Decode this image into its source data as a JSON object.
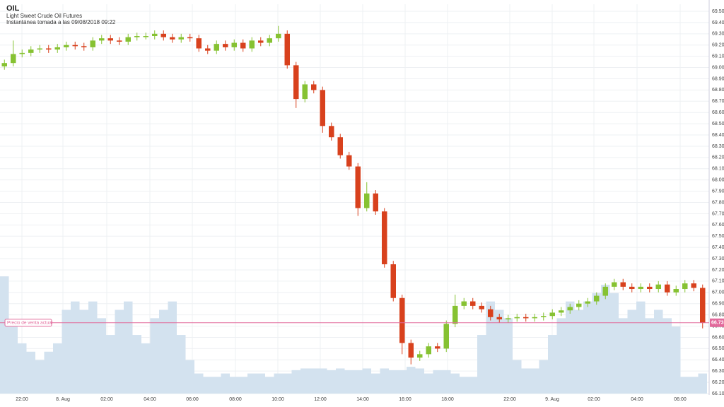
{
  "chart_data": {
    "type": "candlestick",
    "title": "OIL",
    "subtitle": "Light Sweet Crude Oil Futures",
    "snapshot": "Instantánea tomada a las 09/08/2018 09:22",
    "up_color": "#86c232",
    "down_color": "#d8411d",
    "x": [
      0.5,
      1.5,
      2.5,
      3.5,
      4.5,
      5.5,
      6.5,
      7.5,
      8.5,
      9.5,
      10.5,
      11.5,
      12.5,
      13.5,
      14.5,
      15.5,
      16.5,
      17.5,
      18.5,
      19.5,
      20.5,
      21.5,
      22.5,
      23.5,
      24.5,
      25.5,
      26.5,
      27.5,
      28.5,
      29.5,
      30.5,
      31.5,
      32.5,
      33.5,
      34.5,
      35.5,
      36.5,
      37.5,
      38.5,
      39.5,
      40.5,
      41.5,
      42.5,
      43.5,
      44.5,
      45.5,
      46.5,
      47.5,
      48.5,
      49.5,
      50.5,
      51.5,
      52.5,
      53.5,
      54.5,
      55.5,
      56.5,
      57.5,
      58.5,
      59.5,
      60.5,
      61.5,
      62.5,
      63.5,
      64.5,
      65.5,
      66.5,
      67.5,
      68.5,
      69.5,
      70.5,
      71.5,
      72.5,
      73.5,
      74.5,
      75.5,
      76.5,
      77.5,
      78.5,
      79.5
    ],
    "open": [
      69.01,
      69.04,
      69.12,
      69.13,
      69.16,
      69.17,
      69.16,
      69.18,
      69.2,
      69.19,
      69.18,
      69.24,
      69.26,
      69.24,
      69.23,
      69.27,
      69.28,
      69.28,
      69.3,
      69.27,
      69.25,
      69.27,
      69.26,
      69.17,
      69.15,
      69.21,
      69.18,
      69.22,
      69.17,
      69.24,
      69.22,
      69.26,
      69.3,
      69.02,
      68.72,
      68.85,
      68.8,
      68.48,
      68.38,
      68.22,
      68.12,
      67.75,
      67.88,
      67.72,
      67.25,
      66.95,
      66.55,
      66.42,
      66.45,
      66.52,
      66.5,
      66.72,
      66.88,
      66.92,
      66.88,
      66.85,
      66.78,
      66.76,
      66.77,
      66.78,
      66.77,
      66.78,
      66.79,
      66.82,
      66.84,
      66.87,
      66.9,
      66.92,
      66.97,
      67.05,
      67.09,
      67.05,
      67.03,
      67.05,
      67.03,
      67.07,
      67.0,
      67.03,
      67.08,
      67.04
    ],
    "high": [
      69.07,
      69.24,
      69.16,
      69.19,
      69.2,
      69.2,
      69.21,
      69.23,
      69.23,
      69.22,
      69.27,
      69.29,
      69.29,
      69.27,
      69.3,
      69.31,
      69.31,
      69.33,
      69.33,
      69.3,
      69.3,
      69.3,
      69.29,
      69.2,
      69.24,
      69.24,
      69.25,
      69.25,
      69.27,
      69.27,
      69.29,
      69.37,
      69.33,
      69.05,
      68.88,
      68.88,
      68.83,
      68.51,
      68.41,
      68.25,
      68.15,
      67.98,
      67.91,
      67.75,
      67.28,
      66.98,
      66.58,
      66.48,
      66.55,
      66.55,
      66.75,
      66.98,
      66.95,
      66.95,
      66.91,
      66.88,
      66.81,
      66.8,
      66.81,
      66.81,
      66.81,
      66.82,
      66.85,
      66.87,
      66.9,
      66.93,
      66.95,
      67.0,
      67.08,
      67.12,
      67.12,
      67.08,
      67.08,
      67.08,
      67.1,
      67.1,
      67.06,
      67.11,
      67.11,
      67.07
    ],
    "low": [
      68.98,
      69.01,
      69.09,
      69.1,
      69.13,
      69.13,
      69.13,
      69.15,
      69.16,
      69.15,
      69.15,
      69.21,
      69.21,
      69.2,
      69.2,
      69.24,
      69.25,
      69.25,
      69.24,
      69.22,
      69.22,
      69.23,
      69.14,
      69.12,
      69.12,
      69.15,
      69.15,
      69.14,
      69.14,
      69.19,
      69.19,
      69.23,
      68.99,
      68.64,
      68.69,
      68.77,
      68.42,
      68.35,
      68.19,
      68.09,
      67.68,
      67.72,
      67.69,
      67.22,
      66.92,
      66.45,
      66.36,
      66.39,
      66.42,
      66.47,
      66.47,
      66.69,
      66.85,
      66.85,
      66.82,
      66.75,
      66.73,
      66.73,
      66.74,
      66.74,
      66.74,
      66.75,
      66.76,
      66.79,
      66.81,
      66.84,
      66.87,
      66.89,
      66.94,
      67.02,
      67.02,
      67.0,
      67.0,
      67.0,
      67.0,
      66.97,
      66.97,
      67.0,
      67.01,
      66.68
    ],
    "close": [
      69.04,
      69.12,
      69.13,
      69.16,
      69.17,
      69.16,
      69.18,
      69.2,
      69.19,
      69.18,
      69.24,
      69.26,
      69.24,
      69.23,
      69.27,
      69.28,
      69.28,
      69.3,
      69.27,
      69.25,
      69.27,
      69.26,
      69.17,
      69.15,
      69.21,
      69.18,
      69.22,
      69.17,
      69.24,
      69.22,
      69.26,
      69.3,
      69.02,
      68.72,
      68.85,
      68.8,
      68.48,
      68.38,
      68.22,
      68.12,
      67.75,
      67.88,
      67.72,
      67.25,
      66.95,
      66.55,
      66.42,
      66.45,
      66.52,
      66.5,
      66.72,
      66.88,
      66.92,
      66.88,
      66.85,
      66.78,
      66.76,
      66.77,
      66.78,
      66.77,
      66.78,
      66.79,
      66.82,
      66.84,
      66.87,
      66.9,
      66.92,
      66.97,
      67.05,
      67.09,
      67.05,
      67.03,
      67.05,
      67.03,
      67.07,
      67.0,
      67.03,
      67.08,
      67.04,
      66.73
    ],
    "volume": {
      "color": "#d3e2ef",
      "axis": "y2",
      "values": [
        70,
        40,
        30,
        25,
        20,
        25,
        30,
        50,
        55,
        50,
        55,
        45,
        35,
        50,
        55,
        35,
        30,
        45,
        50,
        55,
        35,
        20,
        12,
        10,
        10,
        12,
        10,
        10,
        12,
        12,
        10,
        12,
        12,
        14,
        15,
        15,
        15,
        14,
        15,
        14,
        14,
        15,
        12,
        15,
        14,
        14,
        16,
        15,
        12,
        14,
        14,
        12,
        10,
        10,
        35,
        55,
        50,
        45,
        20,
        15,
        15,
        20,
        35,
        45,
        55,
        50,
        55,
        60,
        65,
        60,
        45,
        50,
        55,
        45,
        50,
        45,
        40,
        10,
        10,
        12
      ]
    },
    "y2lim": [
      0,
      100
    ],
    "xlim": [
      0,
      80.24
    ],
    "xticks": [
      {
        "value": 2.48,
        "label": "22:00"
      },
      {
        "value": 7.12,
        "label": "8. Aug"
      },
      {
        "value": 12.08,
        "label": "02:00"
      },
      {
        "value": 16.96,
        "label": "04:00"
      },
      {
        "value": 21.76,
        "label": "06:00"
      },
      {
        "value": 26.64,
        "label": "08:00"
      },
      {
        "value": 31.44,
        "label": "10:00"
      },
      {
        "value": 36.24,
        "label": "12:00"
      },
      {
        "value": 41.04,
        "label": "14:00"
      },
      {
        "value": 45.84,
        "label": "16:00"
      },
      {
        "value": 50.64,
        "label": "18:00"
      },
      {
        "value": 57.68,
        "label": "22:00"
      },
      {
        "value": 62.48,
        "label": "9. Aug"
      },
      {
        "value": 67.2,
        "label": "02:00"
      },
      {
        "value": 72.08,
        "label": "04:00"
      },
      {
        "value": 76.96,
        "label": "06:00"
      }
    ],
    "ylim": [
      66.1,
      69.5
    ],
    "yticks": [
      {
        "value": 66.1,
        "label": "66.10"
      },
      {
        "value": 66.2,
        "label": "66.20"
      },
      {
        "value": 66.3,
        "label": "66.30"
      },
      {
        "value": 66.4,
        "label": "66.40"
      },
      {
        "value": 66.5,
        "label": "66.50"
      },
      {
        "value": 66.6,
        "label": "66.60"
      },
      {
        "value": 66.7,
        "label": "66.70"
      },
      {
        "value": 66.8,
        "label": "66.80"
      },
      {
        "value": 66.9,
        "label": "66.90"
      },
      {
        "value": 67.0,
        "label": "67.00"
      },
      {
        "value": 67.1,
        "label": "67.10"
      },
      {
        "value": 67.2,
        "label": "67.20"
      },
      {
        "value": 67.3,
        "label": "67.30"
      },
      {
        "value": 67.4,
        "label": "67.40"
      },
      {
        "value": 67.5,
        "label": "67.50"
      },
      {
        "value": 67.6,
        "label": "67.60"
      },
      {
        "value": 67.7,
        "label": "67.70"
      },
      {
        "value": 67.8,
        "label": "67.80"
      },
      {
        "value": 67.9,
        "label": "67.90"
      },
      {
        "value": 68.0,
        "label": "68.00"
      },
      {
        "value": 68.1,
        "label": "68.10"
      },
      {
        "value": 68.2,
        "label": "68.20"
      },
      {
        "value": 68.3,
        "label": "68.30"
      },
      {
        "value": 68.4,
        "label": "68.40"
      },
      {
        "value": 68.5,
        "label": "68.50"
      },
      {
        "value": 68.6,
        "label": "68.60"
      },
      {
        "value": 68.7,
        "label": "68.70"
      },
      {
        "value": 68.8,
        "label": "68.80"
      },
      {
        "value": 68.9,
        "label": "68.90"
      },
      {
        "value": 69.0,
        "label": "69.00"
      },
      {
        "value": 69.1,
        "label": "69.10"
      },
      {
        "value": 69.2,
        "label": "69.20"
      },
      {
        "value": 69.3,
        "label": "69.30"
      },
      {
        "value": 69.4,
        "label": "69.40"
      },
      {
        "value": 69.5,
        "label": "69.50"
      }
    ],
    "grid": true,
    "current_price": {
      "value": 66.73,
      "label": "66.73",
      "color": "#e26a9c"
    },
    "current_price_label": "Precio de venta actual"
  }
}
